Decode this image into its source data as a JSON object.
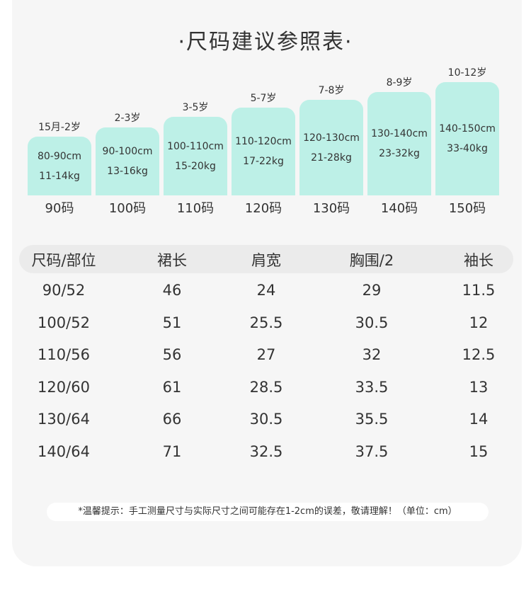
{
  "header": {
    "title": "·尺码建议参照表·"
  },
  "sizes": [
    {
      "age": "15月-2岁",
      "height": "80-90cm",
      "weight": "11-14kg",
      "size": "90码"
    },
    {
      "age": "2-3岁",
      "height": "90-100cm",
      "weight": "13-16kg",
      "size": "100码"
    },
    {
      "age": "3-5岁",
      "height": "100-110cm",
      "weight": "15-20kg",
      "size": "110码"
    },
    {
      "age": "5-7岁",
      "height": "110-120cm",
      "weight": "17-22kg",
      "size": "120码"
    },
    {
      "age": "7-8岁",
      "height": "120-130cm",
      "weight": "21-28kg",
      "size": "130码"
    },
    {
      "age": "8-9岁",
      "height": "130-140cm",
      "weight": "23-32kg",
      "size": "140码"
    },
    {
      "age": "10-12岁",
      "height": "140-150cm",
      "weight": "33-40kg",
      "size": "150码"
    }
  ],
  "table": {
    "columns": [
      "尺码/部位",
      "裙长",
      "肩宽",
      "胸围/2",
      "袖长"
    ],
    "rows": [
      [
        "90/52",
        "46",
        "24",
        "29",
        "11.5"
      ],
      [
        "100/52",
        "51",
        "25.5",
        "30.5",
        "12"
      ],
      [
        "110/56",
        "56",
        "27",
        "32",
        "12.5"
      ],
      [
        "120/60",
        "61",
        "28.5",
        "33.5",
        "13"
      ],
      [
        "130/64",
        "66",
        "30.5",
        "35.5",
        "14"
      ],
      [
        "140/64",
        "71",
        "32.5",
        "37.5",
        "15"
      ]
    ]
  },
  "note": "*温馨提示：手工测量尺寸与实际尺寸之间可能存在1-2cm的误差，敬请理解！（单位：cm）"
}
